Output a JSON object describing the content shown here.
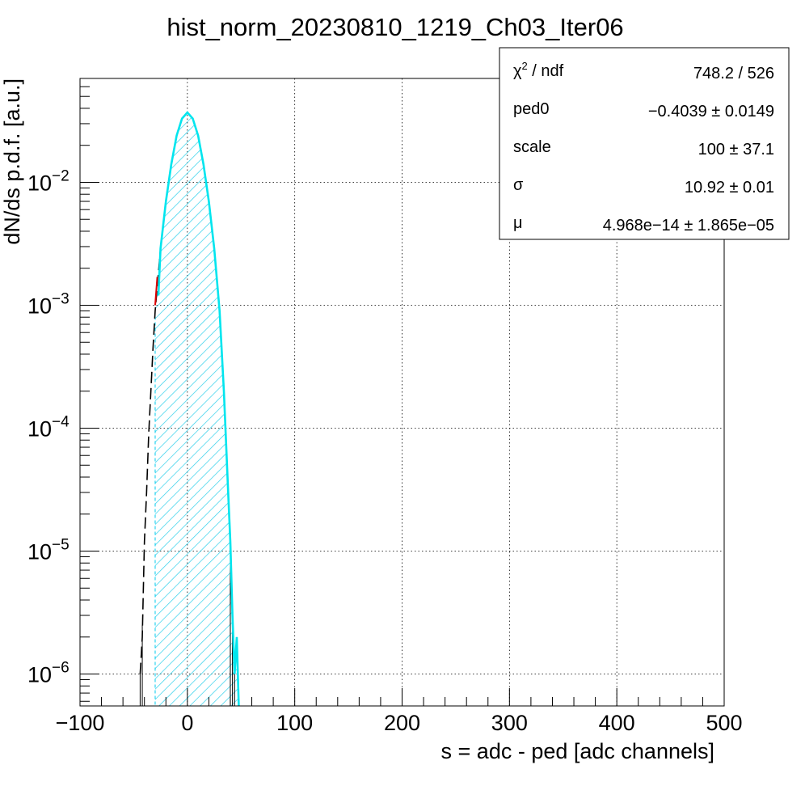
{
  "chart_data": {
    "type": "histogram",
    "title": "hist_norm_20230810_1219_Ch03_Iter06",
    "xlabel": "s = adc - ped [adc channels]",
    "ylabel": "dN/ds p.d.f. [a.u.]",
    "xlim": [
      -100,
      500
    ],
    "ylim": [
      5.5e-07,
      0.07
    ],
    "yscale": "log",
    "grid": true,
    "x_ticks": [
      -100,
      0,
      100,
      200,
      300,
      400,
      500
    ],
    "x_tick_labels": [
      "−100",
      "0",
      "100",
      "200",
      "300",
      "400",
      "500"
    ],
    "y_ticks": [
      {
        "value": 1e-06,
        "base": "10",
        "exp": "−6"
      },
      {
        "value": 1e-05,
        "base": "10",
        "exp": "−5"
      },
      {
        "value": 0.0001,
        "base": "10",
        "exp": "−4"
      },
      {
        "value": 0.001,
        "base": "10",
        "exp": "−3"
      },
      {
        "value": 0.01,
        "base": "10",
        "exp": "−2"
      }
    ],
    "histogram": {
      "color": "#000000",
      "points": [
        [
          -44,
          1e-06
        ],
        [
          -42,
          2e-06
        ],
        [
          -40,
          1.2e-05
        ],
        [
          -38,
          3e-05
        ],
        [
          -36,
          9e-05
        ],
        [
          -34,
          0.0002
        ],
        [
          -32,
          0.00045
        ],
        [
          -30,
          0.0009
        ],
        [
          -25,
          0.0029
        ],
        [
          -20,
          0.007
        ],
        [
          -15,
          0.014
        ],
        [
          -10,
          0.024
        ],
        [
          -5,
          0.033
        ],
        [
          0,
          0.037
        ],
        [
          5,
          0.033
        ],
        [
          10,
          0.024
        ],
        [
          15,
          0.014
        ],
        [
          20,
          0.007
        ],
        [
          25,
          0.0029
        ],
        [
          30,
          0.0009
        ],
        [
          34,
          0.0002
        ],
        [
          38,
          3e-05
        ],
        [
          40,
          1.2e-05
        ],
        [
          42,
          3e-06
        ],
        [
          44,
          1e-06
        ]
      ]
    },
    "fit_region": {
      "x_start": -30,
      "x_end": 50,
      "fill_color": "#00ccee",
      "line_color": "#00e5ee"
    },
    "fit_curve_red": {
      "color": "#dd0000",
      "x": [
        -30,
        -28
      ]
    },
    "stats_box": {
      "rows": [
        {
          "label": "χ",
          "label_sup": "2",
          "label_rest": " / ndf",
          "value": "748.2 / 526"
        },
        {
          "label": "ped0",
          "label_sup": "",
          "label_rest": "",
          "value": "−0.4039 ± 0.0149"
        },
        {
          "label": "scale",
          "label_sup": "",
          "label_rest": "",
          "value": "100 ± 37.1"
        },
        {
          "label": "σ",
          "label_sup": "",
          "label_rest": "",
          "value": "10.92 ± 0.01"
        },
        {
          "label": "μ",
          "label_sup": "",
          "label_rest": "",
          "value": "4.968e−14 ± 1.865e−05"
        }
      ]
    }
  }
}
